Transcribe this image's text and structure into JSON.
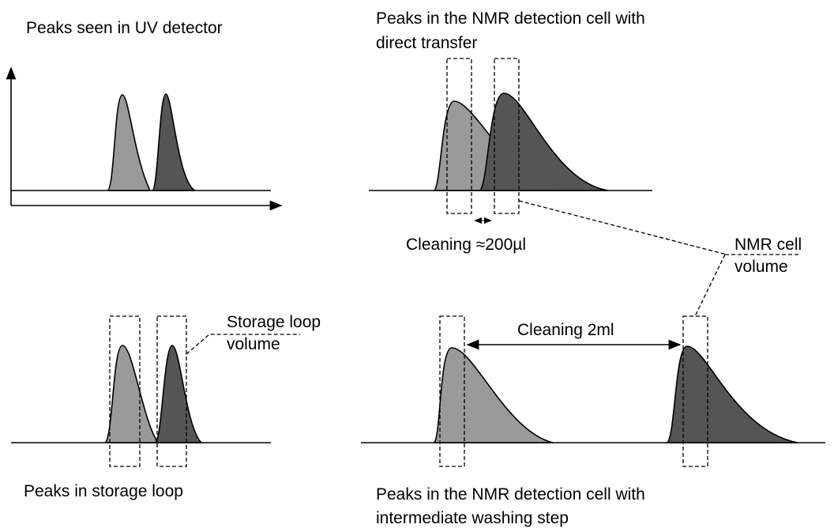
{
  "panels": {
    "uv": {
      "title": "Peaks seen in UV detector"
    },
    "direct": {
      "title": [
        "Peaks in the NMR detection cell with",
        "direct transfer"
      ],
      "cleaning": "Cleaning ≈200µl"
    },
    "storage": {
      "title": "Peaks in storage loop",
      "label": [
        "Storage loop",
        "volume"
      ]
    },
    "washing": {
      "title": [
        "Peaks in the NMR detection cell with",
        "intermediate washing step"
      ],
      "cleaning": "Cleaning 2ml"
    }
  },
  "nmr_label": [
    "NMR cell",
    "volume"
  ]
}
